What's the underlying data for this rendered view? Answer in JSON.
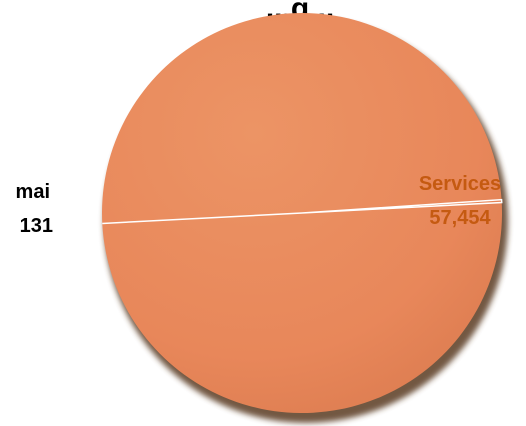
{
  "chart_data": {
    "type": "pie",
    "title": "...g...",
    "slices": [
      {
        "label": "Services",
        "value": 57454,
        "display_value": "57,454",
        "color": "#E8875A",
        "label_color": "#C55A11"
      },
      {
        "label": "mai",
        "value": 131,
        "display_value": "131",
        "color": "#E8875A",
        "label_color": "#000000"
      }
    ],
    "start_angle_deg": -3,
    "separator_color": "#FFFFFF",
    "shadow_color": "#5A3A22"
  }
}
